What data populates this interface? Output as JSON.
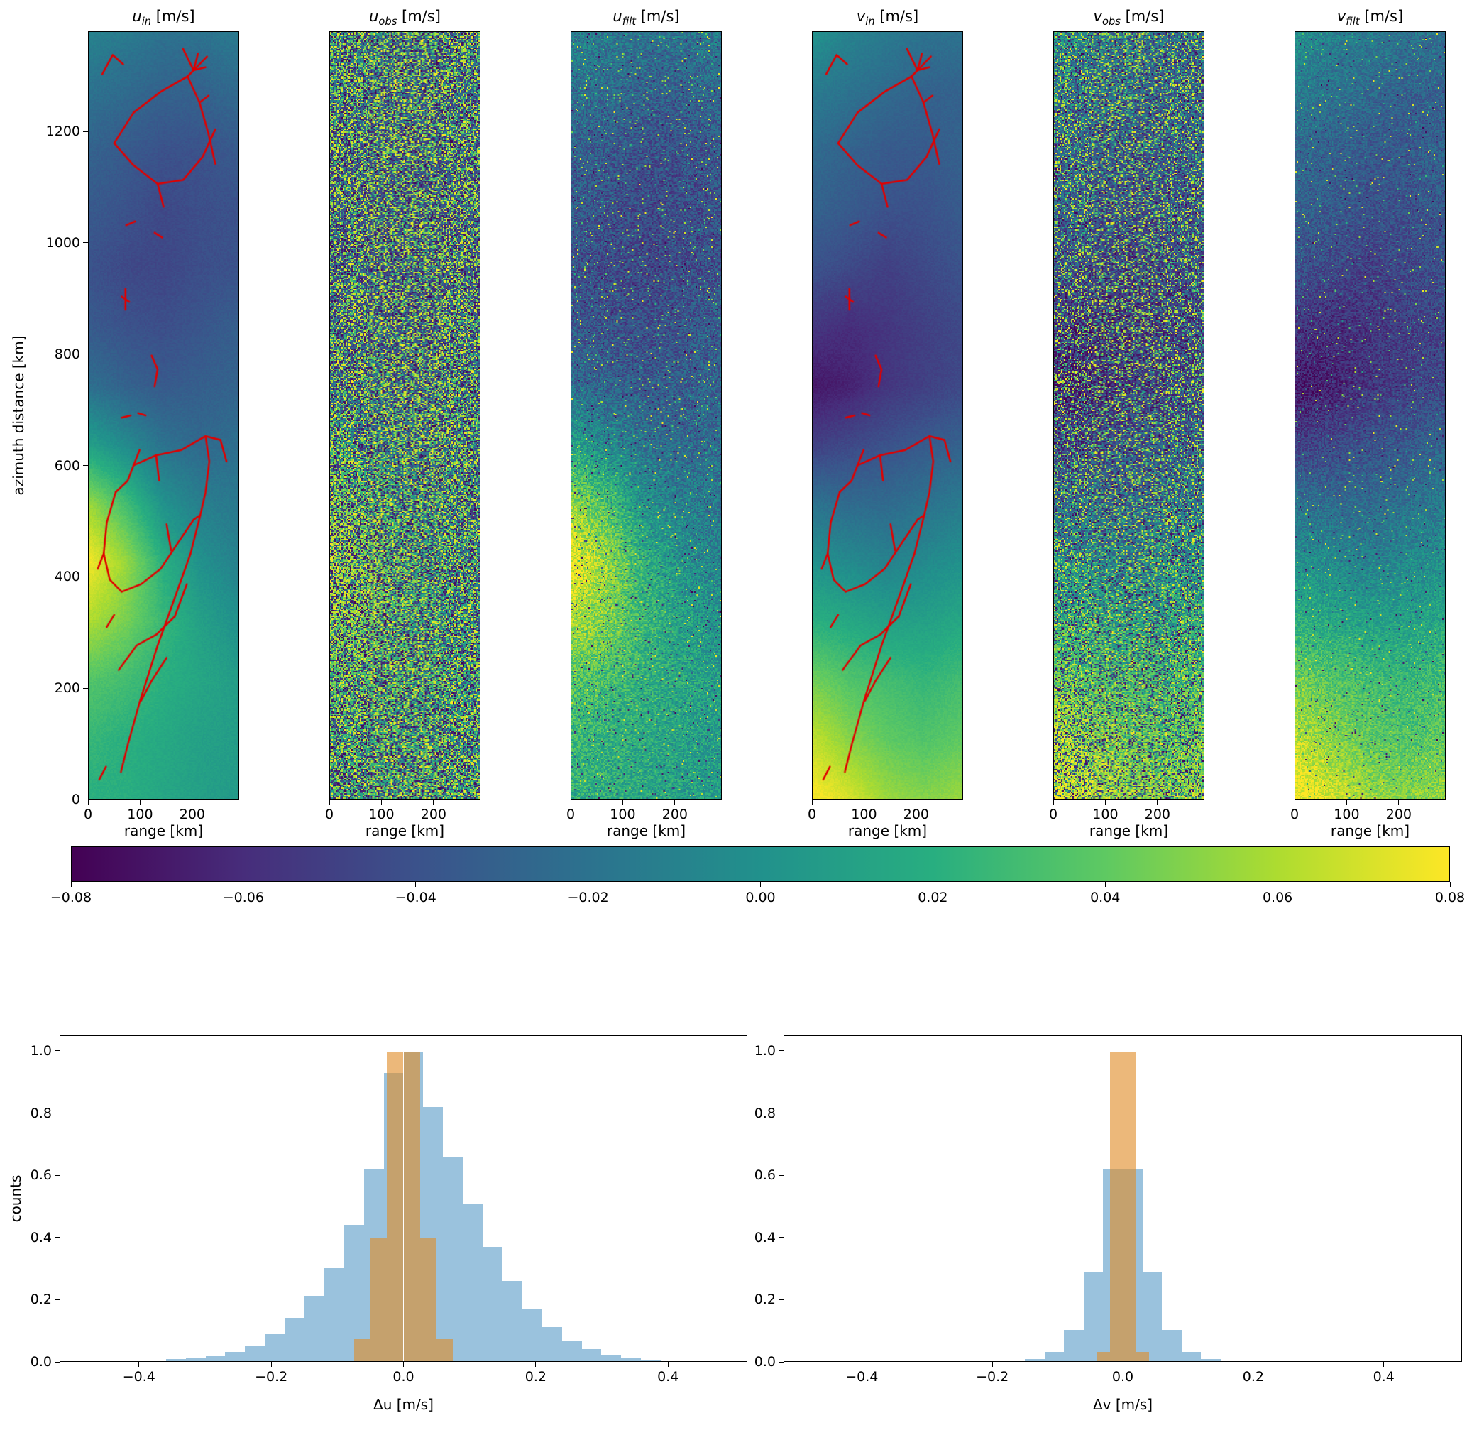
{
  "colors": {
    "viridis_stops": [
      "#440154",
      "#472d7b",
      "#3b528b",
      "#2c728e",
      "#21918c",
      "#28ae80",
      "#5ec962",
      "#addc30",
      "#fde725"
    ],
    "track_red": "#e00000",
    "hist_blue": "rgba(31,119,180,0.45)",
    "hist_tan": "rgba(225,140,40,0.62)",
    "axis": "#000000"
  },
  "tracks": [
    [
      [
        0.09,
        0.055
      ],
      [
        0.16,
        0.03
      ],
      [
        0.23,
        0.042
      ]
    ],
    [
      [
        0.63,
        0.022
      ],
      [
        0.7,
        0.05
      ],
      [
        0.78,
        0.046
      ]
    ],
    [
      [
        0.7,
        0.05
      ],
      [
        0.73,
        0.028
      ]
    ],
    [
      [
        0.17,
        0.145
      ],
      [
        0.3,
        0.105
      ],
      [
        0.48,
        0.078
      ],
      [
        0.66,
        0.058
      ],
      [
        0.79,
        0.032
      ]
    ],
    [
      [
        0.66,
        0.058
      ],
      [
        0.74,
        0.092
      ],
      [
        0.8,
        0.133
      ],
      [
        0.845,
        0.172
      ]
    ],
    [
      [
        0.17,
        0.145
      ],
      [
        0.295,
        0.173
      ],
      [
        0.46,
        0.198
      ],
      [
        0.63,
        0.193
      ],
      [
        0.76,
        0.163
      ],
      [
        0.845,
        0.127
      ]
    ],
    [
      [
        0.46,
        0.198
      ],
      [
        0.5,
        0.228
      ]
    ],
    [
      [
        0.74,
        0.092
      ],
      [
        0.8,
        0.083
      ]
    ],
    [
      [
        0.25,
        0.252
      ],
      [
        0.31,
        0.247
      ]
    ],
    [
      [
        0.44,
        0.262
      ],
      [
        0.49,
        0.268
      ]
    ],
    [
      [
        0.22,
        0.345
      ],
      [
        0.27,
        0.352
      ]
    ],
    [
      [
        0.245,
        0.335
      ],
      [
        0.245,
        0.362
      ]
    ],
    [
      [
        0.42,
        0.422
      ],
      [
        0.46,
        0.44
      ],
      [
        0.44,
        0.462
      ]
    ],
    [
      [
        0.22,
        0.503
      ],
      [
        0.28,
        0.5
      ]
    ],
    [
      [
        0.33,
        0.497
      ],
      [
        0.38,
        0.5
      ]
    ],
    [
      [
        0.3,
        0.565
      ],
      [
        0.45,
        0.552
      ],
      [
        0.62,
        0.545
      ],
      [
        0.78,
        0.527
      ],
      [
        0.88,
        0.532
      ]
    ],
    [
      [
        0.78,
        0.527
      ],
      [
        0.805,
        0.56
      ],
      [
        0.78,
        0.6
      ],
      [
        0.745,
        0.63
      ]
    ],
    [
      [
        0.34,
        0.545
      ],
      [
        0.3,
        0.565
      ],
      [
        0.26,
        0.585
      ],
      [
        0.18,
        0.6
      ]
    ],
    [
      [
        0.18,
        0.6
      ],
      [
        0.12,
        0.64
      ],
      [
        0.1,
        0.68
      ],
      [
        0.14,
        0.714
      ],
      [
        0.22,
        0.73
      ]
    ],
    [
      [
        0.22,
        0.73
      ],
      [
        0.35,
        0.72
      ],
      [
        0.48,
        0.7
      ],
      [
        0.6,
        0.665
      ],
      [
        0.7,
        0.636
      ],
      [
        0.745,
        0.63
      ]
    ],
    [
      [
        0.745,
        0.63
      ],
      [
        0.68,
        0.68
      ],
      [
        0.58,
        0.735
      ],
      [
        0.46,
        0.8
      ],
      [
        0.34,
        0.874
      ],
      [
        0.26,
        0.93
      ],
      [
        0.215,
        0.965
      ]
    ],
    [
      [
        0.2,
        0.832
      ],
      [
        0.32,
        0.8
      ],
      [
        0.45,
        0.786
      ],
      [
        0.575,
        0.762
      ]
    ],
    [
      [
        0.575,
        0.762
      ],
      [
        0.655,
        0.72
      ]
    ],
    [
      [
        0.35,
        0.872
      ],
      [
        0.42,
        0.846
      ],
      [
        0.52,
        0.816
      ]
    ],
    [
      [
        0.12,
        0.776
      ],
      [
        0.17,
        0.76
      ]
    ],
    [
      [
        0.07,
        0.975
      ],
      [
        0.115,
        0.958
      ]
    ],
    [
      [
        0.55,
        0.676
      ],
      [
        0.52,
        0.642
      ]
    ],
    [
      [
        0.88,
        0.532
      ],
      [
        0.92,
        0.56
      ]
    ],
    [
      [
        0.1,
        0.68
      ],
      [
        0.06,
        0.7
      ]
    ],
    [
      [
        0.45,
        0.552
      ],
      [
        0.47,
        0.585
      ]
    ]
  ],
  "chart_data": {
    "maps": {
      "type": "heatmap",
      "colormap": "viridis",
      "clim": [
        -0.08,
        0.08
      ],
      "xlabel": "range [km]",
      "ylabel": "azimuth distance [km]",
      "x_ticks": [
        0,
        100,
        200
      ],
      "x_tick_labels": [
        "0",
        "100",
        "200"
      ],
      "x_max": 290,
      "y_ticks": [
        0,
        200,
        400,
        600,
        800,
        1000,
        1200
      ],
      "y_tick_labels": [
        "0",
        "200",
        "400",
        "600",
        "800",
        "1000",
        "1200"
      ],
      "y_max": 1380,
      "panels": [
        {
          "title_var": "u",
          "title_sub": "in",
          "title_unit": " [m/s]",
          "noise": 0.003,
          "speckle": 0,
          "seed": 11,
          "tracks": true,
          "field": [
            [
              -0.01,
              -0.015,
              -0.02,
              -0.02,
              -0.015
            ],
            [
              -0.02,
              -0.025,
              -0.03,
              -0.03,
              -0.025
            ],
            [
              -0.03,
              -0.035,
              -0.04,
              -0.04,
              -0.035
            ],
            [
              -0.035,
              -0.04,
              -0.045,
              -0.042,
              -0.04
            ],
            [
              -0.04,
              -0.045,
              -0.046,
              -0.042,
              -0.04
            ],
            [
              -0.035,
              -0.04,
              -0.042,
              -0.038,
              -0.032
            ],
            [
              -0.022,
              -0.03,
              -0.035,
              -0.032,
              -0.03
            ],
            [
              0.01,
              -0.005,
              -0.02,
              -0.026,
              -0.022
            ],
            [
              0.055,
              0.03,
              0.0,
              -0.012,
              -0.016
            ],
            [
              0.078,
              0.055,
              0.02,
              0.0,
              -0.01
            ],
            [
              0.06,
              0.046,
              0.026,
              0.01,
              0.0
            ],
            [
              0.036,
              0.03,
              0.02,
              0.014,
              0.008
            ],
            [
              0.026,
              0.02,
              0.016,
              0.01,
              0.008
            ],
            [
              0.02,
              0.02,
              0.014,
              0.01,
              0.006
            ]
          ]
        },
        {
          "title_var": "u",
          "title_sub": "obs",
          "title_unit": " [m/s]",
          "noise": 0.012,
          "speckle": 0.82,
          "seed": 22,
          "tracks": false,
          "field_ref": 0
        },
        {
          "title_var": "u",
          "title_sub": "filt",
          "title_unit": " [m/s]",
          "noise": 0.02,
          "speckle": 0.05,
          "seed": 33,
          "tracks": false,
          "field_ref": 0
        },
        {
          "title_var": "v",
          "title_sub": "in",
          "title_unit": " [m/s]",
          "noise": 0.003,
          "speckle": 0,
          "seed": 44,
          "tracks": true,
          "field": [
            [
              0.0,
              -0.01,
              -0.015,
              -0.02,
              -0.02
            ],
            [
              -0.015,
              -0.02,
              -0.025,
              -0.03,
              -0.03
            ],
            [
              -0.025,
              -0.03,
              -0.035,
              -0.035,
              -0.03
            ],
            [
              -0.03,
              -0.035,
              -0.04,
              -0.04,
              -0.035
            ],
            [
              -0.04,
              -0.045,
              -0.05,
              -0.045,
              -0.04
            ],
            [
              -0.055,
              -0.06,
              -0.055,
              -0.05,
              -0.045
            ],
            [
              -0.07,
              -0.065,
              -0.055,
              -0.05,
              -0.045
            ],
            [
              -0.05,
              -0.045,
              -0.04,
              -0.035,
              -0.03
            ],
            [
              -0.02,
              -0.025,
              -0.025,
              -0.02,
              -0.015
            ],
            [
              0.0,
              -0.005,
              -0.01,
              -0.005,
              0.0
            ],
            [
              0.02,
              0.015,
              0.01,
              0.01,
              0.015
            ],
            [
              0.045,
              0.035,
              0.03,
              0.025,
              0.03
            ],
            [
              0.065,
              0.05,
              0.04,
              0.035,
              0.04
            ],
            [
              0.08,
              0.07,
              0.055,
              0.05,
              0.055
            ]
          ]
        },
        {
          "title_var": "v",
          "title_sub": "obs",
          "title_unit": " [m/s]",
          "noise": 0.025,
          "speckle": 0.48,
          "seed": 55,
          "tracks": false,
          "field_ref": 3
        },
        {
          "title_var": "v",
          "title_sub": "filt",
          "title_unit": " [m/s]",
          "noise": 0.015,
          "speckle": 0.03,
          "seed": 66,
          "tracks": false,
          "field_ref": 3
        }
      ]
    },
    "colorbar": {
      "min": -0.08,
      "max": 0.08,
      "tick_values": [
        -0.08,
        -0.06,
        -0.04,
        -0.02,
        0.0,
        0.02,
        0.04,
        0.06,
        0.08
      ],
      "tick_labels": [
        "−0.08",
        "−0.06",
        "−0.04",
        "−0.02",
        "0.00",
        "0.02",
        "0.04",
        "0.06",
        "0.08"
      ]
    },
    "histograms": [
      {
        "type": "bar",
        "xlabel": "Δu [m/s]",
        "ylabel": "counts",
        "xlim": [
          -0.52,
          0.52
        ],
        "ylim": [
          0,
          1.05
        ],
        "x_tick_values": [
          -0.4,
          -0.2,
          0.0,
          0.2,
          0.4
        ],
        "x_tick_labels": [
          "−0.4",
          "−0.2",
          "0.0",
          "0.2",
          "0.4"
        ],
        "y_tick_values": [
          0.0,
          0.2,
          0.4,
          0.6,
          0.8,
          1.0
        ],
        "y_tick_labels": [
          "0.0",
          "0.2",
          "0.4",
          "0.6",
          "0.8",
          "1.0"
        ],
        "series": [
          {
            "name": "delta-u-wide",
            "color_key": "hist_blue",
            "bin_start": -0.45,
            "bin_width": 0.03,
            "values": [
              0.001,
              0.002,
              0.003,
              0.006,
              0.01,
              0.018,
              0.03,
              0.05,
              0.09,
              0.14,
              0.21,
              0.3,
              0.44,
              0.62,
              0.93,
              1.0,
              0.82,
              0.66,
              0.51,
              0.37,
              0.26,
              0.17,
              0.11,
              0.065,
              0.038,
              0.02,
              0.01,
              0.005,
              0.002,
              0.001
            ]
          },
          {
            "name": "delta-u-narrow",
            "color_key": "hist_tan",
            "bin_start": -0.075,
            "bin_width": 0.025,
            "values": [
              0.07,
              0.4,
              1.0,
              1.0,
              0.4,
              0.07
            ]
          }
        ]
      },
      {
        "type": "bar",
        "xlabel": "Δv [m/s]",
        "ylabel": "counts",
        "xlim": [
          -0.52,
          0.52
        ],
        "ylim": [
          0,
          1.05
        ],
        "x_tick_values": [
          -0.4,
          -0.2,
          0.0,
          0.2,
          0.4
        ],
        "x_tick_labels": [
          "−0.4",
          "−0.2",
          "0.0",
          "0.2",
          "0.4"
        ],
        "y_tick_values": [
          0.0,
          0.2,
          0.4,
          0.6,
          0.8,
          1.0
        ],
        "y_tick_labels": [
          "0.0",
          "0.2",
          "0.4",
          "0.6",
          "0.8",
          "1.0"
        ],
        "series": [
          {
            "name": "delta-v-wide",
            "color_key": "hist_blue",
            "bin_start": -0.18,
            "bin_width": 0.03,
            "values": [
              0.003,
              0.008,
              0.03,
              0.1,
              0.29,
              0.62,
              0.62,
              0.29,
              0.1,
              0.03,
              0.008,
              0.003
            ]
          },
          {
            "name": "delta-v-narrow",
            "color_key": "hist_tan",
            "bin_start": -0.04,
            "bin_width": 0.02,
            "values": [
              0.03,
              1.0,
              1.0,
              0.03
            ]
          }
        ]
      }
    ]
  }
}
